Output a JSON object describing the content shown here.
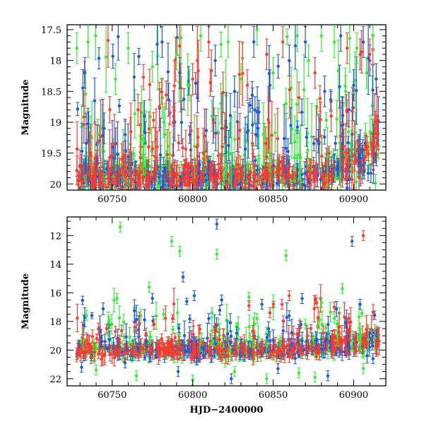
{
  "chart_data": [
    {
      "type": "scatter",
      "title": "",
      "xlabel": "",
      "ylabel": "Magnitude",
      "xlim": [
        60722,
        60920
      ],
      "ylim": [
        20.1,
        17.42
      ],
      "y_inverted": true,
      "grid": false,
      "error_bars": true,
      "xticks": [
        60750,
        60800,
        60850,
        60900
      ],
      "xtick_labels": [
        "60750",
        "60800",
        "60850",
        "60900"
      ],
      "yticks": [
        17.5,
        18,
        18.5,
        19,
        19.5,
        20
      ],
      "ytick_labels": [
        "17.5",
        "18",
        "18.5",
        "19",
        "19.5",
        "20"
      ],
      "series": [
        {
          "color": "#33ee33",
          "x": [
            60728,
            60735,
            60741,
            60752,
            60760,
            60768,
            60775,
            60782,
            60790,
            60798,
            60805,
            60812,
            60822,
            60830,
            60840,
            60850,
            60858,
            60865,
            60872,
            60880,
            60888,
            60895,
            60902,
            60908,
            60912
          ],
          "y": [
            17.8,
            17.7,
            19.2,
            18.3,
            17.8,
            19.3,
            18.1,
            19.0,
            17.9,
            18.4,
            17.6,
            18.9,
            17.7,
            18.3,
            17.5,
            18.2,
            18.7,
            17.6,
            18.0,
            17.6,
            17.7,
            18.5,
            17.8,
            18.2,
            17.6
          ]
        },
        {
          "color": "#1a5adb",
          "x": [
            60733,
            60745,
            60758,
            60770,
            60781,
            60792,
            60803,
            60814,
            60826,
            60838,
            60848,
            60860,
            60870,
            60882,
            60892,
            60900,
            60906,
            60910,
            60914
          ],
          "y": [
            18.2,
            19.1,
            19.2,
            18.9,
            17.7,
            18.2,
            18.6,
            18.0,
            18.5,
            17.7,
            18.4,
            18.0,
            17.7,
            18.5,
            17.6,
            18.4,
            17.7,
            18.0,
            18.3
          ]
        },
        {
          "color": "#ff3a2a",
          "x": [
            60730,
            60742,
            60756,
            60766,
            60778,
            60788,
            60800,
            60810,
            60820,
            60834,
            60846,
            60856,
            60866,
            60876,
            60886,
            60896,
            60904,
            60910,
            60915
          ],
          "y": [
            19.7,
            19.3,
            19.6,
            18.8,
            19.4,
            19.0,
            18.3,
            17.7,
            19.1,
            18.4,
            17.9,
            17.7,
            18.6,
            18.2,
            18.9,
            17.8,
            17.9,
            17.9,
            19.2
          ]
        }
      ],
      "baseline": {
        "level": 19.88,
        "spread": 0.14
      }
    },
    {
      "type": "scatter",
      "title": "",
      "xlabel": "HJD−2400000",
      "ylabel": "Magnitude",
      "xlim": [
        60722,
        60920
      ],
      "ylim": [
        22.5,
        10.7
      ],
      "y_inverted": true,
      "grid": false,
      "error_bars": true,
      "xticks": [
        60750,
        60800,
        60850,
        60900
      ],
      "xtick_labels": [
        "60750",
        "60800",
        "60850",
        "60900"
      ],
      "yticks": [
        12,
        14,
        16,
        18,
        20,
        22
      ],
      "ytick_labels": [
        "12",
        "14",
        "16",
        "18",
        "20",
        "22"
      ],
      "series": [
        {
          "color": "#33ee33",
          "x": [
            60755,
            60787,
            60792,
            60815,
            60858,
            60753,
            60773,
            60835,
            60880,
            60893,
            60740,
            60765,
            60800,
            60826,
            60846,
            60866,
            60876,
            60906,
            60734,
            60748,
            60782,
            60812,
            60840,
            60870,
            60888
          ],
          "y": [
            11.4,
            12.4,
            13.1,
            13.3,
            13.4,
            16.4,
            15.6,
            16.3,
            16.7,
            15.7,
            21.4,
            21.8,
            22.1,
            21.5,
            22.0,
            21.6,
            21.9,
            21.3,
            17.6,
            18.0,
            17.5,
            17.4,
            17.8,
            18.2,
            17.8
          ]
        },
        {
          "color": "#1a5adb",
          "x": [
            60815,
            60794,
            60899,
            60801,
            60818,
            60843,
            60868,
            60904,
            60731,
            60758,
            60791,
            60824,
            60853,
            60884,
            60912,
            60810,
            60860,
            60895
          ],
          "y": [
            11.2,
            14.9,
            12.4,
            16.2,
            16.5,
            16.8,
            16.4,
            16.8,
            21.2,
            20.9,
            21.5,
            22.0,
            21.3,
            21.8,
            20.6,
            17.8,
            17.6,
            18.1
          ]
        },
        {
          "color": "#ff3a2a",
          "x": [
            60906,
            60860,
            60877,
            60835,
            60888,
            60776,
            60752,
            60764,
            60848,
            60897,
            60915
          ],
          "y": [
            12.0,
            16.2,
            16.7,
            16.9,
            17.0,
            18.2,
            18.7,
            18.4,
            17.4,
            17.8,
            19.3
          ]
        }
      ],
      "baseline": {
        "level": 20.0,
        "spread": 0.35
      }
    }
  ]
}
